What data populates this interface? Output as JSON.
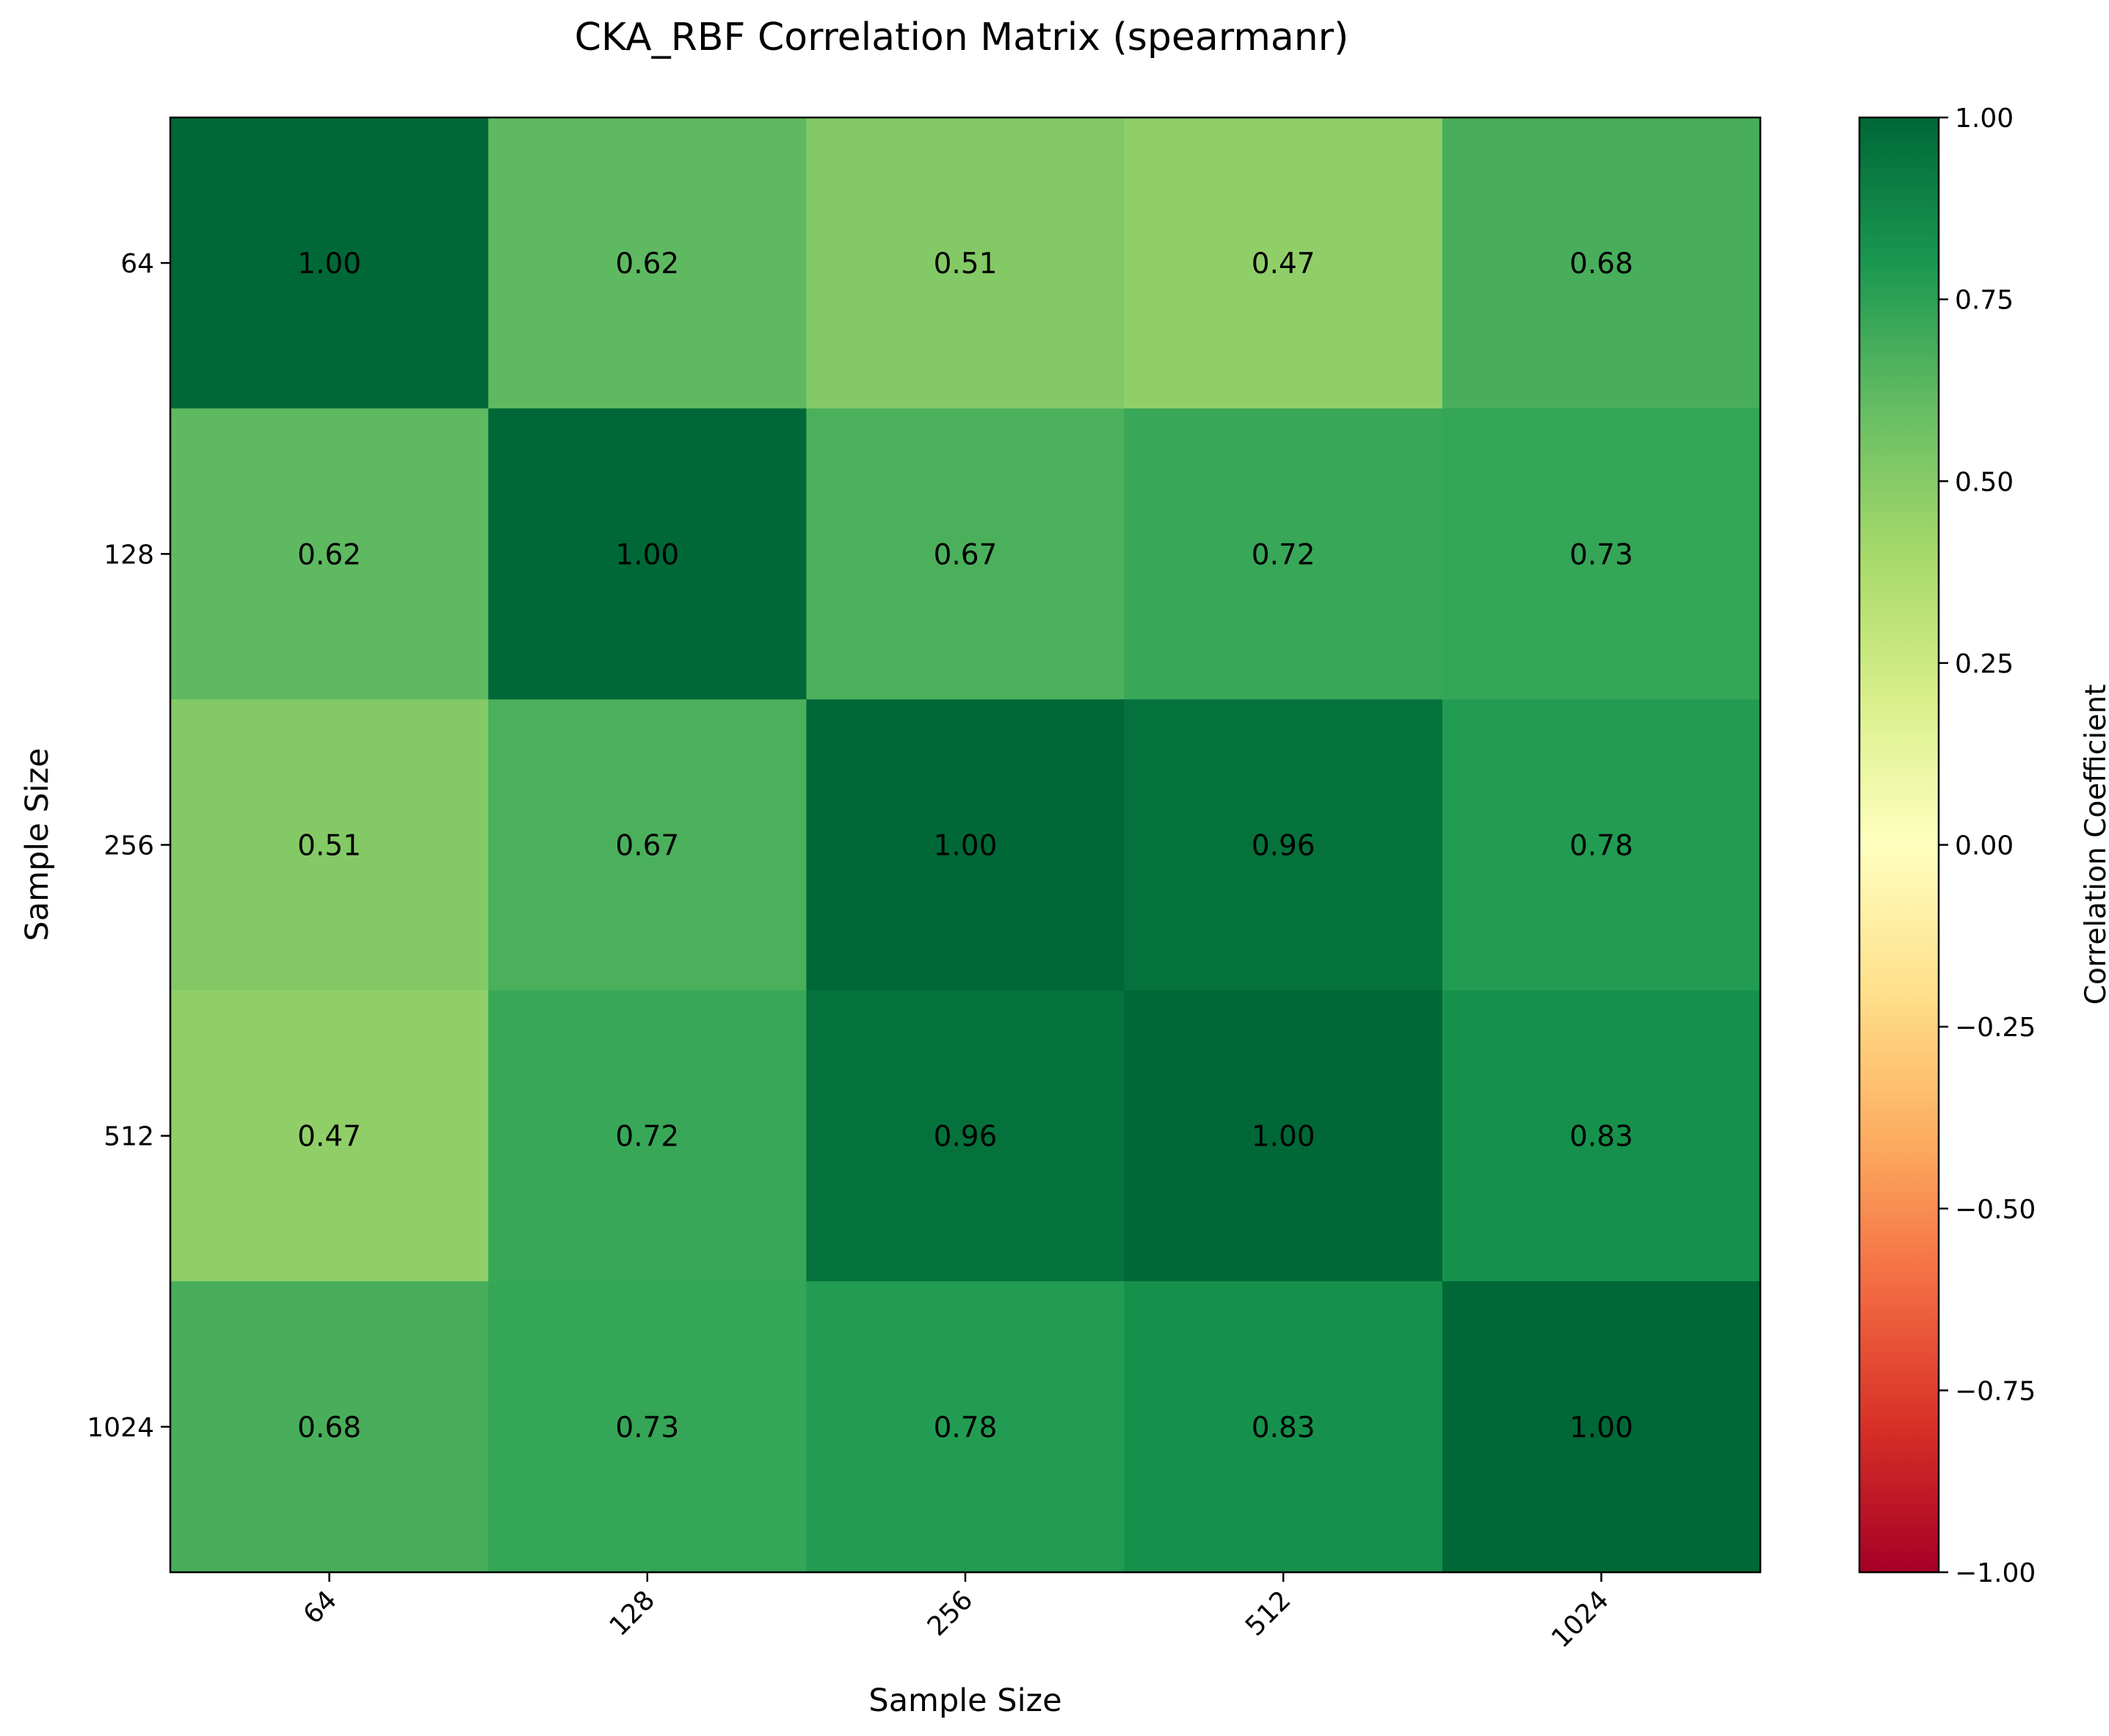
{
  "chart_data": {
    "type": "heatmap",
    "title": "CKA_RBF Correlation Matrix (spearmanr)",
    "xlabel": "Sample Size",
    "ylabel": "Sample Size",
    "x_categories": [
      "64",
      "128",
      "256",
      "512",
      "1024"
    ],
    "y_categories": [
      "64",
      "128",
      "256",
      "512",
      "1024"
    ],
    "matrix": [
      [
        1.0,
        0.62,
        0.51,
        0.47,
        0.68
      ],
      [
        0.62,
        1.0,
        0.67,
        0.72,
        0.73
      ],
      [
        0.51,
        0.67,
        1.0,
        0.96,
        0.78
      ],
      [
        0.47,
        0.72,
        0.96,
        1.0,
        0.83
      ],
      [
        0.68,
        0.73,
        0.78,
        0.83,
        1.0
      ]
    ],
    "value_format_decimals": 2,
    "colorbar": {
      "label": "Correlation Coefficient",
      "colormap": "RdYlGn",
      "vmin": -1.0,
      "vmax": 1.0,
      "ticks": [
        1.0,
        0.75,
        0.5,
        0.25,
        0.0,
        -0.25,
        -0.5,
        -0.75,
        -1.0
      ],
      "tick_labels": [
        "1.00",
        "0.75",
        "0.50",
        "0.25",
        "0.00",
        "−0.25",
        "−0.50",
        "−0.75",
        "−1.00"
      ]
    },
    "x_tick_rotation_deg": 45,
    "grid": false,
    "colors": {
      "colormap_stops": [
        "#a50026",
        "#d73027",
        "#f46d43",
        "#fdae61",
        "#fee08b",
        "#ffffbf",
        "#d9ef8b",
        "#a6d96a",
        "#66bd63",
        "#1a9850",
        "#006837"
      ],
      "cell_text": "#000000",
      "axis": "#000000"
    }
  }
}
